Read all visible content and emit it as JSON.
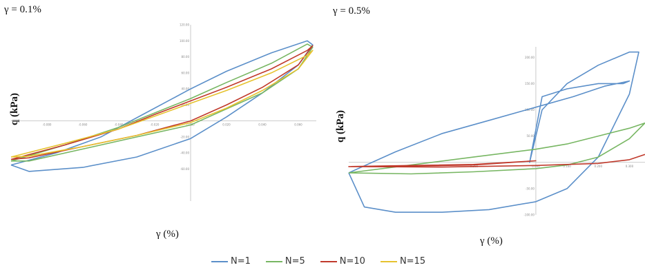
{
  "chart_data": [
    {
      "type": "line",
      "title": "γ = 0.1%",
      "xlabel": "γ (%)",
      "ylabel": "q (kPa)",
      "xlim": [
        -0.1,
        0.07
      ],
      "ylim": [
        -100,
        120
      ],
      "xticks": [
        "-0.080",
        "-0.060",
        "-0.040",
        "-0.020",
        "0.000",
        "0.020",
        "0.040",
        "0.060"
      ],
      "yticks": [
        "120.00",
        "100.00",
        "80.00",
        "60.00",
        "40.00",
        "20.00",
        "-20.00",
        "-40.00",
        "-60.00"
      ],
      "series": [
        {
          "name": "N=1",
          "color": "#5b8fc9",
          "x": [
            -0.1,
            -0.075,
            -0.05,
            -0.025,
            -0.01,
            0.0,
            0.02,
            0.045,
            0.065,
            0.068,
            0.06,
            0.04,
            0.02,
            0.0,
            -0.03,
            -0.06,
            -0.09,
            -0.1
          ],
          "y": [
            -55,
            -40,
            -20,
            10,
            28,
            40,
            62,
            85,
            100,
            95,
            70,
            35,
            5,
            -22,
            -45,
            -58,
            -63,
            -55
          ]
        },
        {
          "name": "N=5",
          "color": "#77b662",
          "x": [
            -0.1,
            -0.07,
            -0.04,
            -0.02,
            0.0,
            0.02,
            0.045,
            0.065,
            0.068,
            0.06,
            0.04,
            0.02,
            0.0,
            -0.03,
            -0.06,
            -0.09,
            -0.1
          ],
          "y": [
            -50,
            -30,
            -8,
            10,
            28,
            48,
            72,
            96,
            92,
            65,
            35,
            15,
            -5,
            -20,
            -35,
            -50,
            -50
          ]
        },
        {
          "name": "N=10",
          "color": "#c0392b",
          "x": [
            -0.1,
            -0.07,
            -0.04,
            -0.02,
            0.0,
            0.02,
            0.045,
            0.065,
            0.068,
            0.06,
            0.04,
            0.02,
            0.0,
            -0.03,
            -0.06,
            -0.09,
            -0.1
          ],
          "y": [
            -48,
            -30,
            -10,
            8,
            25,
            42,
            65,
            88,
            94,
            70,
            42,
            20,
            0,
            -18,
            -32,
            -46,
            -48
          ]
        },
        {
          "name": "N=15",
          "color": "#e6c22e",
          "x": [
            -0.1,
            -0.07,
            -0.04,
            -0.02,
            0.0,
            0.02,
            0.045,
            0.065,
            0.068,
            0.06,
            0.04,
            0.02,
            0.0,
            -0.03,
            -0.06,
            -0.09,
            -0.1
          ],
          "y": [
            -45,
            -28,
            -10,
            6,
            22,
            38,
            60,
            82,
            88,
            65,
            38,
            16,
            -2,
            -18,
            -32,
            -44,
            -45
          ]
        }
      ]
    },
    {
      "type": "line",
      "title": "γ = 0.5%",
      "xlabel": "γ (%)",
      "ylabel": "q (kPa)",
      "xlim": [
        -0.6,
        0.35
      ],
      "ylim": [
        -100,
        220
      ],
      "xticks": [
        "-0.400",
        "-0.200",
        "0.000",
        "0.100",
        "0.200",
        "0.300"
      ],
      "yticks": [
        "200.00",
        "150.00",
        "100.00",
        "50.00",
        "-50.00",
        "-100.00"
      ],
      "series": [
        {
          "name": "N=1",
          "color": "#5b8fc9",
          "x": [
            -0.6,
            -0.45,
            -0.3,
            -0.15,
            0.0,
            0.12,
            0.22,
            0.3,
            0.28,
            0.2,
            0.1,
            0.02,
            -0.02,
            0.02,
            0.1,
            0.2,
            0.3,
            0.33,
            0.3,
            0.2,
            0.1,
            0.0,
            -0.15,
            -0.3,
            -0.45,
            -0.55,
            -0.6
          ],
          "y": [
            -20,
            20,
            55,
            80,
            105,
            125,
            145,
            155,
            150,
            150,
            140,
            125,
            0,
            100,
            150,
            185,
            210,
            210,
            130,
            10,
            -50,
            -75,
            -90,
            -95,
            -95,
            -85,
            -20
          ]
        },
        {
          "name": "N=5",
          "color": "#77b662",
          "x": [
            -0.6,
            -0.4,
            -0.2,
            0.0,
            0.1,
            0.2,
            0.3,
            0.35,
            0.3,
            0.2,
            0.1,
            0.0,
            -0.2,
            -0.4,
            -0.6
          ],
          "y": [
            -20,
            -5,
            10,
            25,
            35,
            50,
            65,
            75,
            45,
            10,
            -5,
            -12,
            -18,
            -22,
            -20
          ]
        },
        {
          "name": "N=10",
          "color": "#c0392b",
          "x": [
            -0.6,
            -0.4,
            -0.2,
            0.0,
            -0.2,
            -0.4,
            -0.6,
            -0.3,
            0.0,
            0.2,
            0.3,
            0.35
          ],
          "y": [
            -8,
            -6,
            -4,
            3,
            -5,
            -7,
            -8,
            -9,
            -6,
            -2,
            5,
            15
          ]
        }
      ]
    }
  ],
  "legend": [
    {
      "label": "N=1",
      "color": "#5b8fc9"
    },
    {
      "label": "N=5",
      "color": "#77b662"
    },
    {
      "label": "N=10",
      "color": "#c0392b"
    },
    {
      "label": "N=15",
      "color": "#e6c22e"
    }
  ]
}
